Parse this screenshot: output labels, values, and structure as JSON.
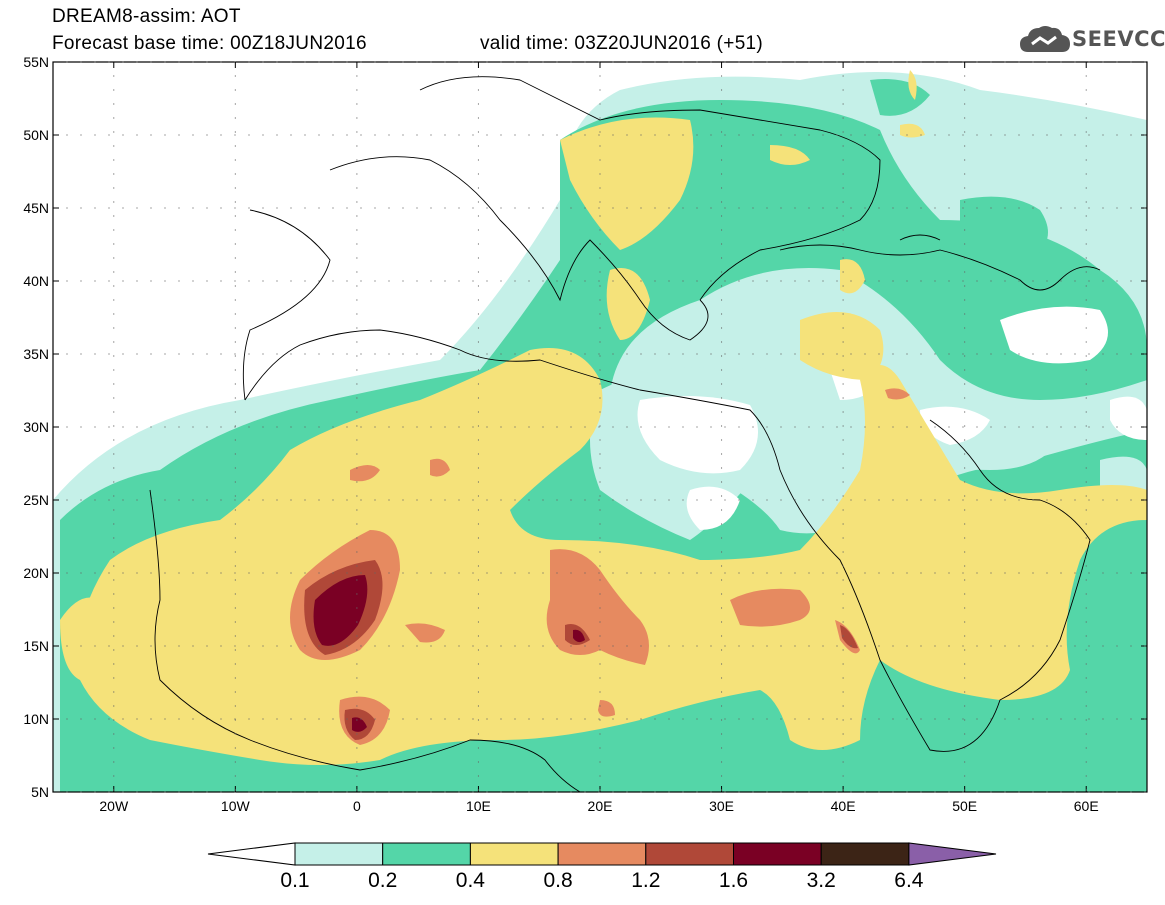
{
  "header": {
    "line1": "DREAM8-assim: AOT",
    "line2": "Forecast base time: 00Z18JUN2016",
    "line3": "valid time: 03Z20JUN2016 (+51)",
    "logo_text": "SEEVCCC"
  },
  "map": {
    "lat_ticks": [
      "55N",
      "50N",
      "45N",
      "40N",
      "35N",
      "30N",
      "25N",
      "20N",
      "15N",
      "10N",
      "5N"
    ],
    "lon_ticks": [
      "20W",
      "10W",
      "0",
      "10E",
      "20E",
      "30E",
      "40E",
      "50E",
      "60E"
    ],
    "lon_range": [
      -25,
      65
    ],
    "lat_range": [
      5,
      55
    ]
  },
  "legend": {
    "labels": [
      "0.1",
      "0.2",
      "0.4",
      "0.8",
      "1.2",
      "1.6",
      "3.2",
      "6.4"
    ],
    "colors": [
      "#ffffff",
      "#c5f0e8",
      "#54d6a8",
      "#f5e27a",
      "#e68a60",
      "#b04838",
      "#7a0024",
      "#3c2416",
      "#8a5fa8"
    ]
  },
  "colors": {
    "white": "#ffffff",
    "level1": "#c5f0e8",
    "level2": "#54d6a8",
    "level3": "#f5e27a",
    "level4": "#e68a60",
    "level5": "#b04838",
    "level6": "#7a0024"
  }
}
